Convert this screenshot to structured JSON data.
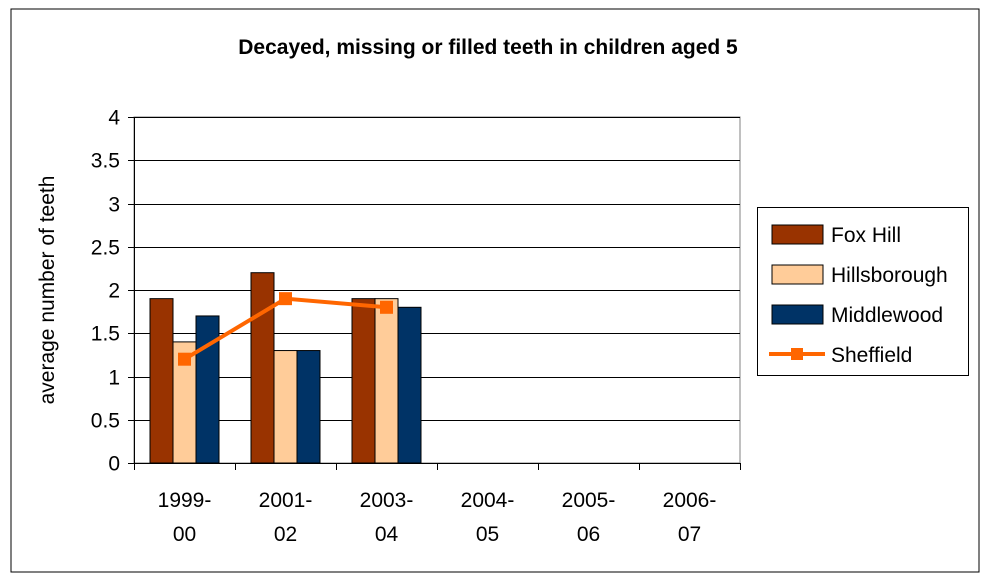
{
  "chart_data": {
    "type": "bar",
    "title": "Decayed, missing or filled teeth in children aged 5",
    "xlabel": "",
    "ylabel": "average number of teeth",
    "ylim": [
      0,
      4
    ],
    "yticks": [
      0,
      0.5,
      1,
      1.5,
      2,
      2.5,
      3,
      3.5,
      4
    ],
    "ytick_labels": [
      "0",
      "0.5",
      "1",
      "1.5",
      "2",
      "2.5",
      "3",
      "3.5",
      "4"
    ],
    "categories": [
      [
        "1999-",
        "00"
      ],
      [
        "2001-",
        "02"
      ],
      [
        "2003-",
        "04"
      ],
      [
        "2004-",
        "05"
      ],
      [
        "2005-",
        "06"
      ],
      [
        "2006-",
        "07"
      ]
    ],
    "grid": true,
    "legend_position": "right",
    "series": [
      {
        "name": "Fox Hill",
        "kind": "bar",
        "color": "#993300",
        "values": [
          1.9,
          2.2,
          1.9,
          null,
          null,
          null
        ]
      },
      {
        "name": "Hillsborough",
        "kind": "bar",
        "color": "#ffcc99",
        "values": [
          1.4,
          1.3,
          1.9,
          null,
          null,
          null
        ]
      },
      {
        "name": "Middlewood",
        "kind": "bar",
        "color": "#003366",
        "values": [
          1.7,
          1.3,
          1.8,
          null,
          null,
          null
        ]
      },
      {
        "name": "Sheffield",
        "kind": "line",
        "color": "#ff6600",
        "values": [
          1.2,
          1.9,
          1.8,
          null,
          null,
          null
        ]
      }
    ]
  }
}
